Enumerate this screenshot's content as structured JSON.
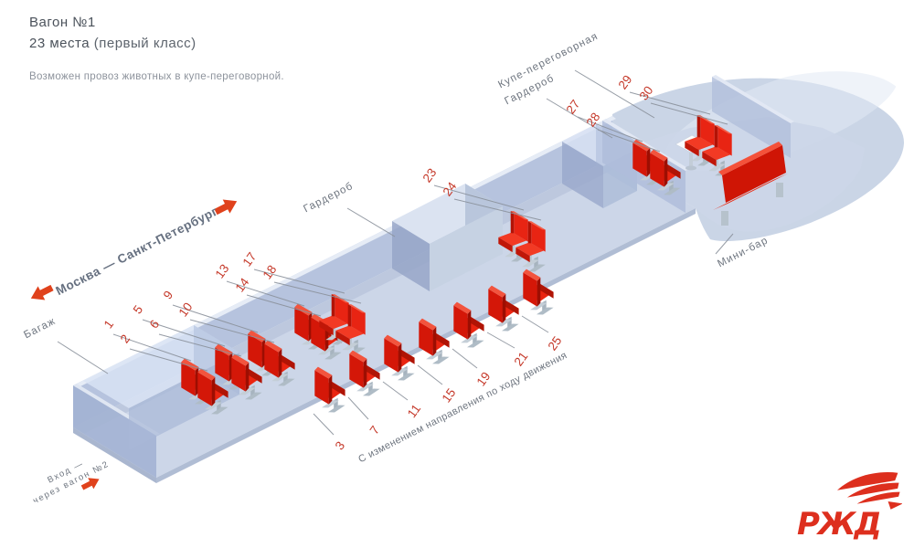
{
  "header": {
    "title": "Вагон №1",
    "seats_count": "23 места",
    "class_note": "(первый класс)",
    "note": "Возможен провоз животных в купе-переговорной."
  },
  "route": {
    "label": "Москва — Санкт-Петербург"
  },
  "sections": {
    "baggage": "Багаж",
    "wardrobe_mid": "Гардероб",
    "wardrobe_front": "Гардероб",
    "meeting_room": "Купе-переговорная",
    "minibar": "Мини-бар"
  },
  "notes": {
    "rotation": "С изменением направления по ходу движения",
    "entrance_line1": "Вход —",
    "entrance_line2": "через вагон №2"
  },
  "seats": {
    "total": "23",
    "numbers": [
      "1",
      "2",
      "3",
      "5",
      "6",
      "7",
      "9",
      "10",
      "11",
      "13",
      "14",
      "15",
      "17",
      "18",
      "19",
      "21",
      "23",
      "24",
      "25",
      "27",
      "28",
      "29",
      "30"
    ]
  },
  "logo": {
    "text": "РЖД"
  },
  "colors": {
    "seat_red": "#d41708",
    "number_red": "#c5392a",
    "label_gray": "#6f7680",
    "body_blue": "#ccd6e8",
    "accent_red": "#e0421c",
    "logo_red": "#dd2f1e"
  }
}
